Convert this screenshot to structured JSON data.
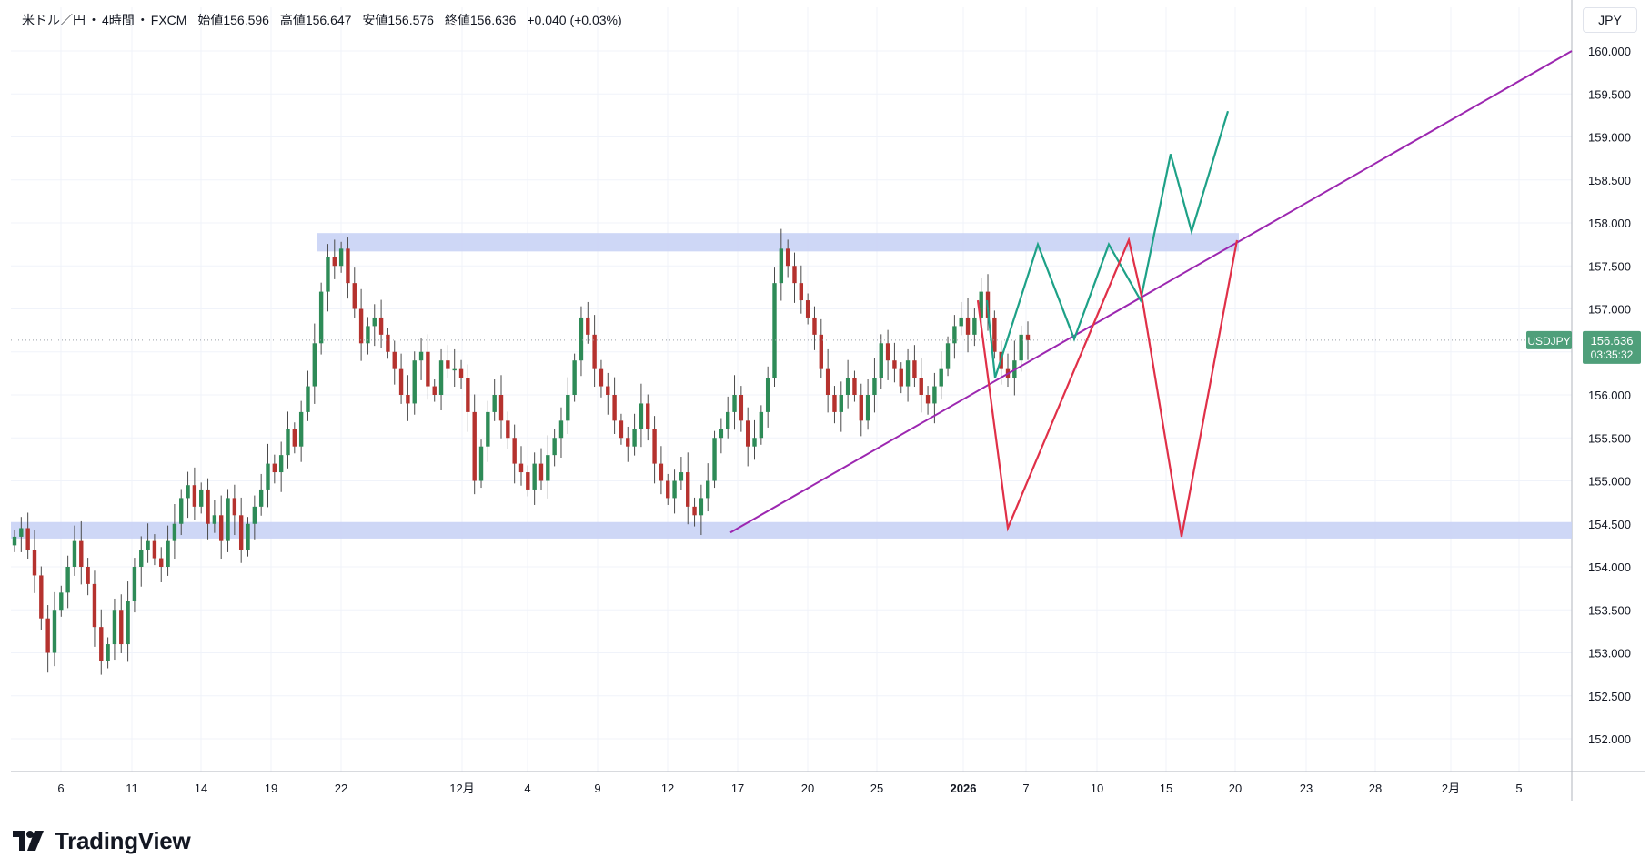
{
  "legend": {
    "pair": "米ドル／円",
    "interval": "4時間",
    "source": "FXCM",
    "open_label": "始値",
    "open": "156.596",
    "high_label": "高値",
    "high": "156.647",
    "low_label": "安値",
    "low": "156.576",
    "close_label": "終値",
    "close": "156.636",
    "change": "+0.040 (+0.03%)",
    "separator": "・"
  },
  "currency_button": "JPY",
  "last_price": {
    "symbol": "USDJPY",
    "price": "156.636",
    "countdown": "03:35:32",
    "color": "#4f9f7a"
  },
  "brand": {
    "name": "TradingView"
  },
  "chart_data": {
    "type": "candlestick",
    "y_axis": {
      "range": [
        151.6,
        160.3
      ],
      "ticks": [
        "152.000",
        "152.500",
        "153.000",
        "153.500",
        "154.000",
        "154.500",
        "155.000",
        "155.500",
        "156.000",
        "156.500",
        "157.000",
        "157.500",
        "158.000",
        "158.500",
        "159.000",
        "159.500",
        "160.000"
      ]
    },
    "x_axis": {
      "ticks": [
        "6",
        "11",
        "14",
        "19",
        "22",
        "12月",
        "4",
        "9",
        "12",
        "17",
        "20",
        "25",
        "2026",
        "7",
        "10",
        "15",
        "20",
        "23",
        "28",
        "2月",
        "5"
      ],
      "bold_ticks": [
        "2026"
      ]
    },
    "colors": {
      "up": "#26a69a",
      "down": "#b03a2e",
      "candle_body_up": "#2e8b57",
      "candle_body_down": "#b5322e",
      "wick": "#4a4a4a",
      "grid": "#f0f3fa",
      "zone": "#c9d3f5",
      "trendline": "#9c27b0",
      "bull_scenario": "#1ea187",
      "bear_scenario": "#e03048"
    },
    "candles_ohlc_path": [
      154.35,
      154.45,
      154.2,
      153.9,
      153.4,
      153.0,
      153.5,
      153.7,
      154.0,
      154.3,
      154.0,
      153.8,
      153.3,
      152.9,
      153.1,
      153.5,
      153.1,
      153.6,
      154.0,
      154.2,
      154.3,
      154.1,
      154.0,
      154.3,
      154.5,
      154.8,
      154.95,
      154.7,
      154.9,
      154.5,
      154.6,
      154.3,
      154.8,
      154.6,
      154.2,
      154.5,
      154.7,
      154.9,
      155.2,
      155.1,
      155.3,
      155.6,
      155.4,
      155.8,
      156.1,
      156.6,
      157.2,
      157.6,
      157.5,
      157.7,
      157.3,
      157.0,
      156.6,
      156.8,
      156.9,
      156.7,
      156.5,
      156.3,
      156.0,
      155.9,
      156.4,
      156.5,
      156.1,
      156.0,
      156.4,
      156.3,
      156.3,
      156.2,
      155.8,
      155.0,
      155.4,
      155.8,
      156.0,
      155.7,
      155.5,
      155.2,
      155.1,
      154.9,
      155.2,
      155.0,
      155.3,
      155.5,
      155.7,
      156.0,
      156.4,
      156.9,
      156.7,
      156.3,
      156.1,
      156.0,
      155.7,
      155.5,
      155.4,
      155.6,
      155.9,
      155.6,
      155.2,
      155.0,
      154.8,
      155.0,
      155.1,
      154.7,
      154.6,
      154.8,
      155.0,
      155.5,
      155.6,
      155.8,
      156.0,
      155.7,
      155.4,
      155.5,
      155.8,
      156.2,
      157.3,
      157.7,
      157.5,
      157.3,
      157.1,
      156.9,
      156.7,
      156.3,
      156.0,
      155.8,
      156.0,
      156.2,
      156.0,
      155.7,
      156.0,
      156.2,
      156.6,
      156.4,
      156.3,
      156.1,
      156.4,
      156.2,
      156.0,
      155.9,
      156.1,
      156.3,
      156.6,
      156.8,
      156.9,
      156.7,
      156.9,
      157.2,
      156.9,
      156.5,
      156.3,
      156.2,
      156.4,
      156.7,
      156.636
    ],
    "zones": [
      {
        "name": "resistance",
        "from": 157.7,
        "to": 157.85
      },
      {
        "name": "support",
        "from": 154.35,
        "to": 154.5
      }
    ],
    "annotations": [
      {
        "name": "trendline",
        "points": [
          [
            "17",
            154.4
          ],
          [
            "end",
            160.0
          ]
        ]
      },
      {
        "name": "bull-scenario",
        "points": [
          157.1,
          156.2,
          157.75,
          156.65,
          157.75,
          157.1,
          158.8,
          157.9,
          159.3
        ]
      },
      {
        "name": "bear-scenario",
        "points": [
          157.1,
          154.45,
          157.8,
          157.1,
          154.35,
          157.8
        ]
      }
    ]
  }
}
